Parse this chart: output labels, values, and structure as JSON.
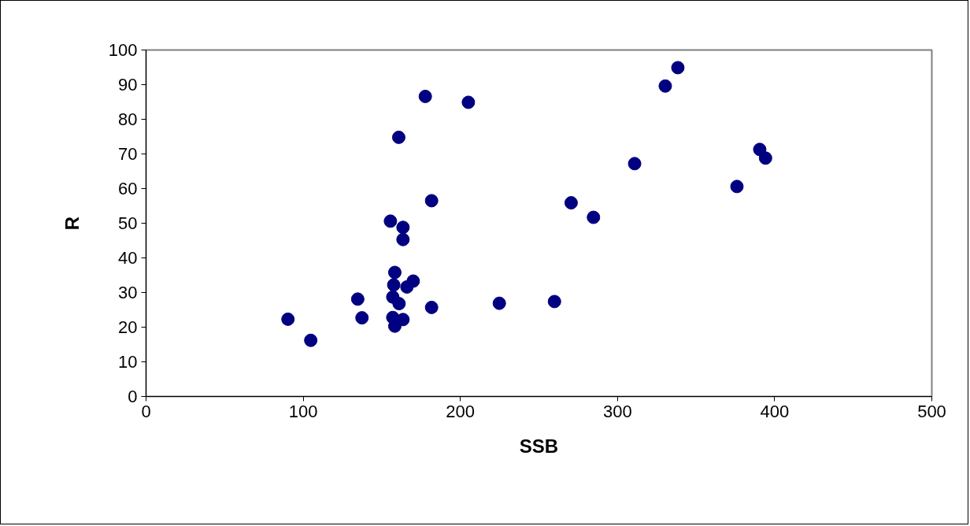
{
  "chart_data": {
    "type": "scatter",
    "xlabel": "SSB",
    "ylabel": "R",
    "xlim": [
      0,
      500
    ],
    "xticks": [
      0,
      100,
      200,
      300,
      400,
      500
    ],
    "ylim": [
      0,
      100
    ],
    "yticks": [
      0,
      10,
      20,
      30,
      40,
      50,
      60,
      70,
      80,
      90,
      100
    ],
    "grid": false,
    "marker": "circle",
    "series": [
      {
        "color": "#000080",
        "x": [
          90.3,
          104.8,
          134.7,
          137.4,
          155.5,
          157.0,
          157.0,
          157.6,
          158.3,
          158.3,
          160.8,
          161.0,
          163.5,
          163.5,
          163.5,
          166.0,
          170.0,
          177.7,
          181.7,
          181.7,
          205.1,
          224.8,
          259.9,
          270.5,
          284.7,
          310.9,
          330.4,
          338.4,
          376.0,
          390.5,
          394.2
        ],
        "values": [
          22.3,
          16.2,
          28.1,
          22.7,
          50.6,
          28.7,
          22.8,
          32.2,
          35.8,
          20.3,
          74.8,
          26.8,
          48.8,
          45.3,
          22.2,
          31.6,
          33.3,
          86.6,
          56.5,
          25.7,
          84.9,
          26.9,
          27.4,
          55.9,
          51.7,
          67.2,
          89.6,
          94.9,
          60.6,
          71.3,
          68.8
        ]
      }
    ]
  }
}
